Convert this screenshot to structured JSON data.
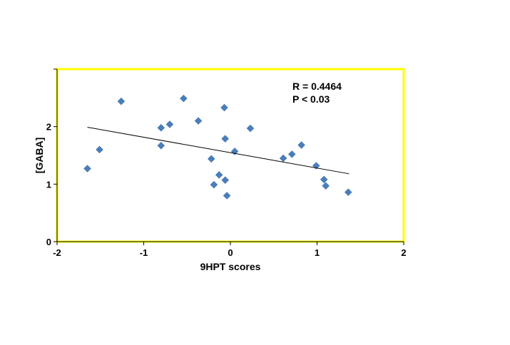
{
  "chart_data": {
    "type": "scatter",
    "xlabel": "9HPT scores",
    "ylabel": "[GABA]",
    "xlim": [
      -2,
      2
    ],
    "ylim": [
      0,
      3
    ],
    "x_ticks": [
      -2,
      -1,
      0,
      1,
      2
    ],
    "y_ticks": [
      0,
      1,
      2
    ],
    "x_tick_labels": [
      "-2",
      "-1",
      "0",
      "1",
      "2"
    ],
    "y_tick_labels": [
      "0",
      "1",
      "2"
    ],
    "grid": false,
    "plot_area_border_color": "#ffff00",
    "marker_color": "#4a7ebb",
    "marker_shape": "diamond",
    "trendline": {
      "x1": -1.65,
      "y1": 1.99,
      "x2": 1.37,
      "y2": 1.18,
      "color": "#000000"
    },
    "annotations": [
      "R = 0.4464",
      "P < 0.03"
    ],
    "points": [
      {
        "x": -1.65,
        "y": 1.27
      },
      {
        "x": -1.51,
        "y": 1.6
      },
      {
        "x": -1.26,
        "y": 2.44
      },
      {
        "x": -0.8,
        "y": 1.98
      },
      {
        "x": -0.8,
        "y": 1.67
      },
      {
        "x": -0.7,
        "y": 2.04
      },
      {
        "x": -0.54,
        "y": 2.49
      },
      {
        "x": -0.37,
        "y": 2.1
      },
      {
        "x": -0.22,
        "y": 1.44
      },
      {
        "x": -0.19,
        "y": 0.99
      },
      {
        "x": -0.13,
        "y": 1.16
      },
      {
        "x": -0.07,
        "y": 2.33
      },
      {
        "x": -0.06,
        "y": 1.79
      },
      {
        "x": -0.06,
        "y": 1.07
      },
      {
        "x": -0.04,
        "y": 0.8
      },
      {
        "x": 0.05,
        "y": 1.57
      },
      {
        "x": 0.23,
        "y": 1.97
      },
      {
        "x": 0.61,
        "y": 1.45
      },
      {
        "x": 0.71,
        "y": 1.52
      },
      {
        "x": 0.82,
        "y": 1.68
      },
      {
        "x": 0.99,
        "y": 1.32
      },
      {
        "x": 1.08,
        "y": 1.08
      },
      {
        "x": 1.1,
        "y": 0.97
      },
      {
        "x": 1.36,
        "y": 0.86
      }
    ]
  }
}
